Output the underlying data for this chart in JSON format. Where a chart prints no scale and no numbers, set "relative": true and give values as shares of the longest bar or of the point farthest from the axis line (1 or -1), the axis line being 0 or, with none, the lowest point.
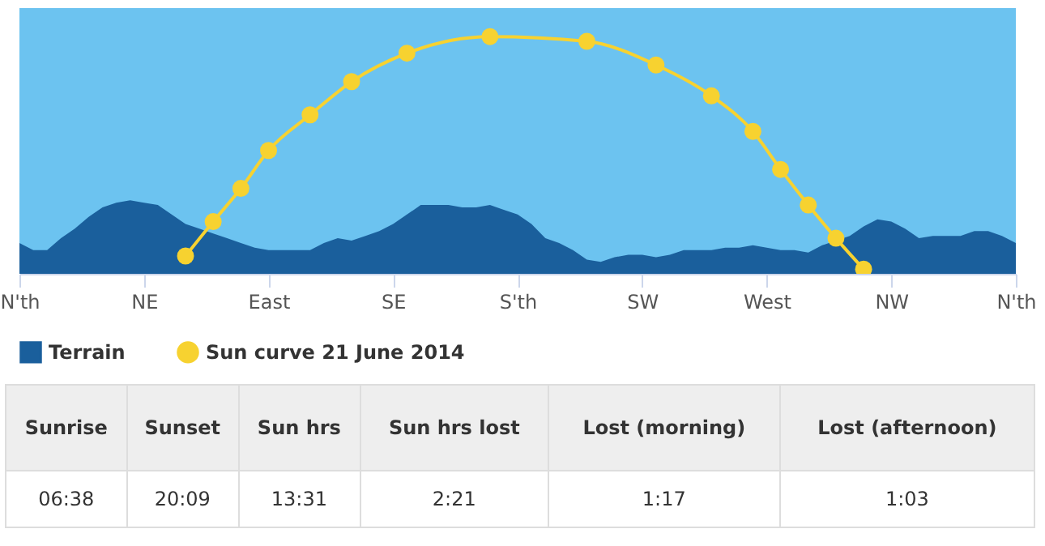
{
  "chart_data": {
    "type": "area",
    "relative": true,
    "legend": "bottom",
    "line_style": "solid",
    "categories": [
      "N'th",
      null,
      null,
      null,
      null,
      null,
      null,
      null,
      null,
      "NE",
      null,
      null,
      null,
      null,
      null,
      null,
      null,
      null,
      "East",
      null,
      null,
      null,
      null,
      null,
      null,
      null,
      null,
      "SE",
      null,
      null,
      null,
      null,
      null,
      null,
      null,
      null,
      "S'th",
      null,
      null,
      null,
      null,
      null,
      null,
      null,
      null,
      "SW",
      null,
      null,
      null,
      null,
      null,
      null,
      null,
      null,
      "West",
      null,
      null,
      null,
      null,
      null,
      null,
      null,
      null,
      "NW",
      null,
      null,
      null,
      null,
      null,
      null,
      null,
      null,
      "N'th"
    ],
    "series": [
      {
        "name": "Terrain",
        "color": "#1a5f9c",
        "values": [
          0.13,
          0.1,
          0.1,
          0.15,
          0.19,
          0.24,
          0.28,
          0.3,
          0.31,
          0.3,
          0.29,
          0.25,
          0.21,
          0.19,
          0.17,
          0.15,
          0.13,
          0.11,
          0.1,
          0.1,
          0.1,
          0.1,
          0.13,
          0.15,
          0.14,
          0.16,
          0.18,
          0.21,
          0.25,
          0.29,
          0.29,
          0.29,
          0.28,
          0.28,
          0.29,
          0.27,
          0.25,
          0.21,
          0.15,
          0.13,
          0.1,
          0.06,
          0.05,
          0.07,
          0.08,
          0.08,
          0.07,
          0.08,
          0.1,
          0.1,
          0.1,
          0.11,
          0.11,
          0.12,
          0.11,
          0.1,
          0.1,
          0.09,
          0.12,
          0.14,
          0.16,
          0.2,
          0.23,
          0.22,
          0.19,
          0.15,
          0.16,
          0.16,
          0.16,
          0.18,
          0.18,
          0.16,
          0.13
        ]
      },
      {
        "name": "Sun curve 21 June 2014",
        "type": "line",
        "marker": "circle",
        "color": "#f7d230",
        "values": [
          null,
          null,
          null,
          null,
          null,
          null,
          null,
          null,
          null,
          null,
          null,
          null,
          0.075,
          null,
          0.22,
          null,
          0.36,
          null,
          0.52,
          null,
          null,
          0.67,
          null,
          null,
          0.81,
          null,
          null,
          null,
          0.93,
          null,
          null,
          null,
          null,
          null,
          1,
          null,
          null,
          null,
          null,
          null,
          null,
          0.98,
          null,
          null,
          null,
          null,
          0.88,
          null,
          null,
          null,
          0.75,
          null,
          null,
          0.6,
          null,
          0.44,
          null,
          0.29,
          null,
          0.15,
          null,
          0.02,
          null,
          null,
          null,
          null,
          null,
          null,
          null,
          null,
          null,
          null,
          null
        ]
      }
    ],
    "annotations": [
      "Sunrise",
      "Sunset",
      "Sun hrs",
      "Sun hrs lost",
      "Lost (morning)",
      "Lost (afternoon)",
      "06:38",
      "20:09",
      "13:31",
      "2:21",
      "1:17",
      "1:03"
    ]
  }
}
